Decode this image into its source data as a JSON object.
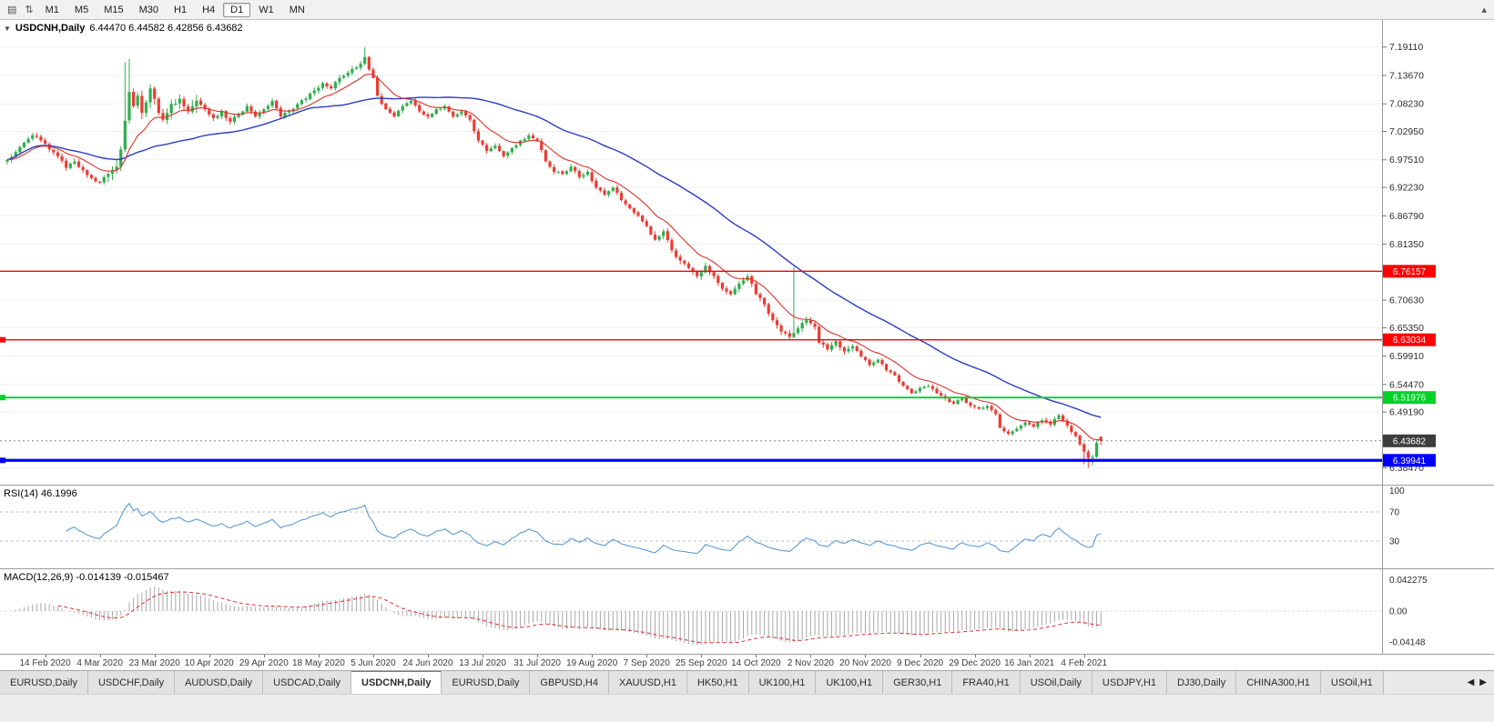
{
  "toolbar": {
    "left_icons": [
      {
        "name": "chart-type-icon",
        "glyph": "▤"
      },
      {
        "name": "chart-scale-icon",
        "glyph": "⇅"
      }
    ],
    "timeframes": [
      "M1",
      "M5",
      "M15",
      "M30",
      "H1",
      "H4",
      "D1",
      "W1",
      "MN"
    ],
    "active_timeframe": "D1",
    "right_icon_glyph": "▴"
  },
  "labels": {
    "chart_title": "USDCNH,Daily",
    "chart_ohlc": "6.44470 6.44582 6.42856 6.43682",
    "rsi": "RSI(14) 46.1996",
    "macd": "MACD(12,26,9) -0.014139 -0.015467"
  },
  "tabs": {
    "items": [
      "EURUSD,Daily",
      "USDCHF,Daily",
      "AUDUSD,Daily",
      "USDCAD,Daily",
      "USDCNH,Daily",
      "EURUSD,Daily",
      "GBPUSD,H4",
      "XAUUSD,H1",
      "HK50,H1",
      "UK100,H1",
      "UK100,H1",
      "GER30,H1",
      "FRA40,H1",
      "USOil,Daily",
      "USDJPY,H1",
      "DJ30,Daily",
      "CHINA300,H1",
      "USOil,H1"
    ],
    "active_index": 4,
    "scroll_left_glyph": "◀",
    "scroll_right_glyph": "▶"
  },
  "colors": {
    "candle_up": "#2fae4e",
    "candle_down": "#ee3b33",
    "ma_fast": "#d8332b",
    "ma_slow": "#2b3cc4",
    "rsi_line": "#5b9bd5",
    "macd_hist": "#a8a8a8",
    "macd_signal": "#df3030",
    "grid": "#f0f0f0",
    "axis_text": "#2c2c2c",
    "panel_border": "#9c9c9c"
  },
  "chart_data": {
    "type": "candlestick",
    "symbol": "USDCNH",
    "timeframe": "Daily",
    "current_bar": {
      "open": 6.4447,
      "high": 6.44582,
      "low": 6.42856,
      "close": 6.43682
    },
    "bars_total": 261,
    "price_min": 6.372,
    "price_max": 7.222,
    "close_anchors": [
      [
        0,
        6.975
      ],
      [
        2,
        6.99
      ],
      [
        4,
        7.008
      ],
      [
        6,
        7.022
      ],
      [
        8,
        7.012
      ],
      [
        10,
        6.995
      ],
      [
        12,
        6.982
      ],
      [
        14,
        6.96
      ],
      [
        16,
        6.972
      ],
      [
        18,
        6.955
      ],
      [
        20,
        6.94
      ],
      [
        22,
        6.932
      ],
      [
        24,
        6.948
      ],
      [
        26,
        6.962
      ],
      [
        27,
        6.995
      ],
      [
        28,
        7.05
      ],
      [
        29,
        7.105
      ],
      [
        30,
        7.078
      ],
      [
        31,
        7.098
      ],
      [
        32,
        7.065
      ],
      [
        33,
        7.085
      ],
      [
        34,
        7.112
      ],
      [
        35,
        7.092
      ],
      [
        36,
        7.065
      ],
      [
        37,
        7.052
      ],
      [
        39,
        7.082
      ],
      [
        41,
        7.092
      ],
      [
        43,
        7.068
      ],
      [
        45,
        7.088
      ],
      [
        47,
        7.072
      ],
      [
        49,
        7.055
      ],
      [
        51,
        7.068
      ],
      [
        53,
        7.048
      ],
      [
        55,
        7.062
      ],
      [
        57,
        7.078
      ],
      [
        59,
        7.058
      ],
      [
        61,
        7.072
      ],
      [
        63,
        7.088
      ],
      [
        65,
        7.058
      ],
      [
        67,
        7.068
      ],
      [
        69,
        7.082
      ],
      [
        71,
        7.092
      ],
      [
        73,
        7.108
      ],
      [
        75,
        7.122
      ],
      [
        77,
        7.112
      ],
      [
        79,
        7.132
      ],
      [
        81,
        7.142
      ],
      [
        83,
        7.152
      ],
      [
        85,
        7.172
      ],
      [
        86,
        7.148
      ],
      [
        87,
        7.132
      ],
      [
        88,
        7.098
      ],
      [
        90,
        7.072
      ],
      [
        92,
        7.058
      ],
      [
        94,
        7.078
      ],
      [
        96,
        7.088
      ],
      [
        98,
        7.068
      ],
      [
        100,
        7.058
      ],
      [
        102,
        7.072
      ],
      [
        104,
        7.078
      ],
      [
        106,
        7.058
      ],
      [
        108,
        7.068
      ],
      [
        110,
        7.052
      ],
      [
        112,
        7.012
      ],
      [
        114,
        6.992
      ],
      [
        116,
        7.002
      ],
      [
        118,
        6.982
      ],
      [
        120,
        6.998
      ],
      [
        122,
        7.012
      ],
      [
        124,
        7.022
      ],
      [
        126,
        7.012
      ],
      [
        128,
        6.972
      ],
      [
        130,
        6.952
      ],
      [
        132,
        6.948
      ],
      [
        134,
        6.962
      ],
      [
        136,
        6.942
      ],
      [
        138,
        6.952
      ],
      [
        140,
        6.922
      ],
      [
        142,
        6.908
      ],
      [
        144,
        6.922
      ],
      [
        146,
        6.898
      ],
      [
        148,
        6.882
      ],
      [
        150,
        6.868
      ],
      [
        152,
        6.848
      ],
      [
        154,
        6.822
      ],
      [
        156,
        6.838
      ],
      [
        158,
        6.802
      ],
      [
        160,
        6.782
      ],
      [
        162,
        6.768
      ],
      [
        164,
        6.752
      ],
      [
        166,
        6.772
      ],
      [
        168,
        6.752
      ],
      [
        170,
        6.728
      ],
      [
        172,
        6.718
      ],
      [
        174,
        6.738
      ],
      [
        176,
        6.752
      ],
      [
        178,
        6.718
      ],
      [
        180,
        6.698
      ],
      [
        182,
        6.668
      ],
      [
        184,
        6.646
      ],
      [
        186,
        6.636
      ],
      [
        188,
        6.652
      ],
      [
        190,
        6.668
      ],
      [
        192,
        6.655
      ],
      [
        193,
        6.625
      ],
      [
        195,
        6.612
      ],
      [
        197,
        6.628
      ],
      [
        199,
        6.608
      ],
      [
        201,
        6.618
      ],
      [
        203,
        6.598
      ],
      [
        205,
        6.582
      ],
      [
        207,
        6.592
      ],
      [
        209,
        6.572
      ],
      [
        211,
        6.562
      ],
      [
        213,
        6.542
      ],
      [
        215,
        6.528
      ],
      [
        217,
        6.538
      ],
      [
        219,
        6.542
      ],
      [
        221,
        6.528
      ],
      [
        223,
        6.518
      ],
      [
        225,
        6.508
      ],
      [
        227,
        6.518
      ],
      [
        229,
        6.504
      ],
      [
        231,
        6.498
      ],
      [
        233,
        6.504
      ],
      [
        235,
        6.488
      ],
      [
        236,
        6.462
      ],
      [
        238,
        6.45
      ],
      [
        240,
        6.46
      ],
      [
        242,
        6.472
      ],
      [
        244,
        6.464
      ],
      [
        246,
        6.476
      ],
      [
        248,
        6.468
      ],
      [
        250,
        6.486
      ],
      [
        252,
        6.466
      ],
      [
        254,
        6.446
      ],
      [
        255,
        6.43
      ],
      [
        256,
        6.416
      ],
      [
        257,
        6.404
      ],
      [
        258,
        6.406
      ],
      [
        259,
        6.433
      ],
      [
        260,
        6.43682
      ]
    ],
    "wick_events": [
      [
        28,
        "high",
        7.162
      ],
      [
        29,
        "high",
        7.168
      ],
      [
        85,
        "high",
        7.1911
      ],
      [
        187,
        "high",
        6.77
      ],
      [
        256,
        "low",
        6.392
      ],
      [
        257,
        "low",
        6.3855
      ],
      [
        258,
        "low",
        6.39
      ]
    ],
    "x_labels": [
      "14 Feb 2020",
      "4 Mar 2020",
      "23 Mar 2020",
      "10 Apr 2020",
      "29 Apr 2020",
      "18 May 2020",
      "5 Jun 2020",
      "24 Jun 2020",
      "13 Jul 2020",
      "31 Jul 2020",
      "19 Aug 2020",
      "7 Sep 2020",
      "25 Sep 2020",
      "14 Oct 2020",
      "2 Nov 2020",
      "20 Nov 2020",
      "9 Dec 2020",
      "29 Dec 2020",
      "16 Jan 2021",
      "4 Feb 2021"
    ],
    "x_label_first_bar": 9,
    "x_label_step": 13,
    "y_ticks": [
      "7.19110",
      "7.13670",
      "7.08230",
      "7.02950",
      "6.97510",
      "6.92230",
      "6.86790",
      "6.81350",
      "6.70630",
      "6.65350",
      "6.59910",
      "6.54470",
      "6.49190",
      "6.38470"
    ],
    "hlines": [
      {
        "value": 6.76157,
        "label": "6.76157",
        "color": "#ff0000",
        "line_width": 1.4,
        "text_color": "#ffffff",
        "edge_marker": false
      },
      {
        "value": 6.63034,
        "label": "6.63034",
        "color": "#ff0000",
        "line_width": 1.4,
        "text_color": "#ffffff",
        "edge_marker": true
      },
      {
        "value": 6.51976,
        "label": "6.51976",
        "color": "#00d22a",
        "line_width": 1.8,
        "text_color": "#ffffff",
        "edge_marker": true
      },
      {
        "value": 6.39941,
        "label": "6.39941",
        "color": "#0000ff",
        "line_width": 3.2,
        "text_color": "#ffffff",
        "edge_marker": true
      }
    ],
    "current_price": {
      "value": 6.43682,
      "label": "6.43682",
      "badge_color": "#3c3c3c",
      "text_color": "#ffffff"
    },
    "indicators": {
      "rsi": {
        "name": "RSI",
        "period": 14,
        "value": 46.1996,
        "levels": [
          100,
          70,
          30
        ],
        "dashed_levels": [
          70,
          30
        ]
      },
      "macd": {
        "name": "MACD",
        "fast": 12,
        "slow": 26,
        "signal": 9,
        "main_value": -0.014139,
        "signal_value": -0.015467,
        "axis_labels": [
          {
            "text": "0.042275",
            "v": 0.042275
          },
          {
            "text": "0.00",
            "v": 0
          },
          {
            "text": "-0.04148",
            "v": -0.04148
          }
        ]
      }
    }
  }
}
